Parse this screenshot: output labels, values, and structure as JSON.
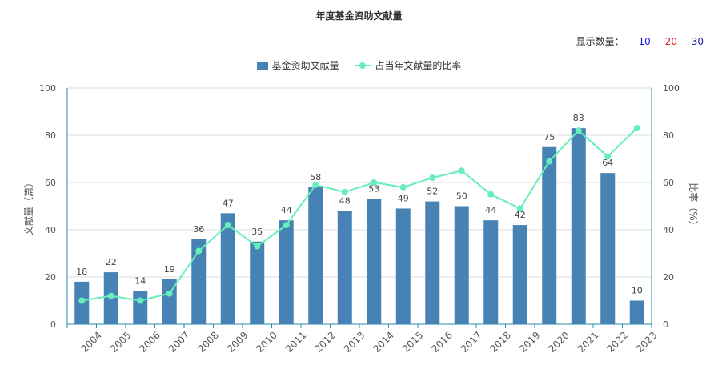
{
  "chart_data": {
    "type": "bar",
    "title": "年度基金资助文献量",
    "categories": [
      "2004",
      "2005",
      "2006",
      "2007",
      "2008",
      "2009",
      "2010",
      "2011",
      "2012",
      "2013",
      "2014",
      "2015",
      "2016",
      "2017",
      "2018",
      "2019",
      "2020",
      "2021",
      "2022",
      "2023"
    ],
    "series": [
      {
        "name": "基金资助文献量",
        "type": "bar",
        "axis": "left",
        "color": "#4682b4",
        "values": [
          18,
          22,
          14,
          19,
          36,
          47,
          35,
          44,
          58,
          48,
          53,
          49,
          52,
          50,
          44,
          42,
          75,
          83,
          64,
          10
        ]
      },
      {
        "name": "占当年文献量的比率",
        "type": "line",
        "axis": "right",
        "color": "#66eebb",
        "values": [
          10,
          12,
          10,
          13,
          31,
          42,
          33,
          42,
          59,
          56,
          60,
          58,
          62,
          65,
          55,
          49,
          69,
          82,
          71,
          83
        ]
      }
    ],
    "ylabel_left": "文献量（篇）",
    "ylabel_right": "比率（%）",
    "ylim_left": [
      0,
      100
    ],
    "ylim_right": [
      0,
      100
    ],
    "yticks": [
      0,
      20,
      40,
      60,
      80,
      100
    ],
    "grid": true,
    "legend_position": "top-center"
  },
  "controls": {
    "count_label": "显示数量：",
    "options": [
      "10",
      "20",
      "30"
    ]
  }
}
